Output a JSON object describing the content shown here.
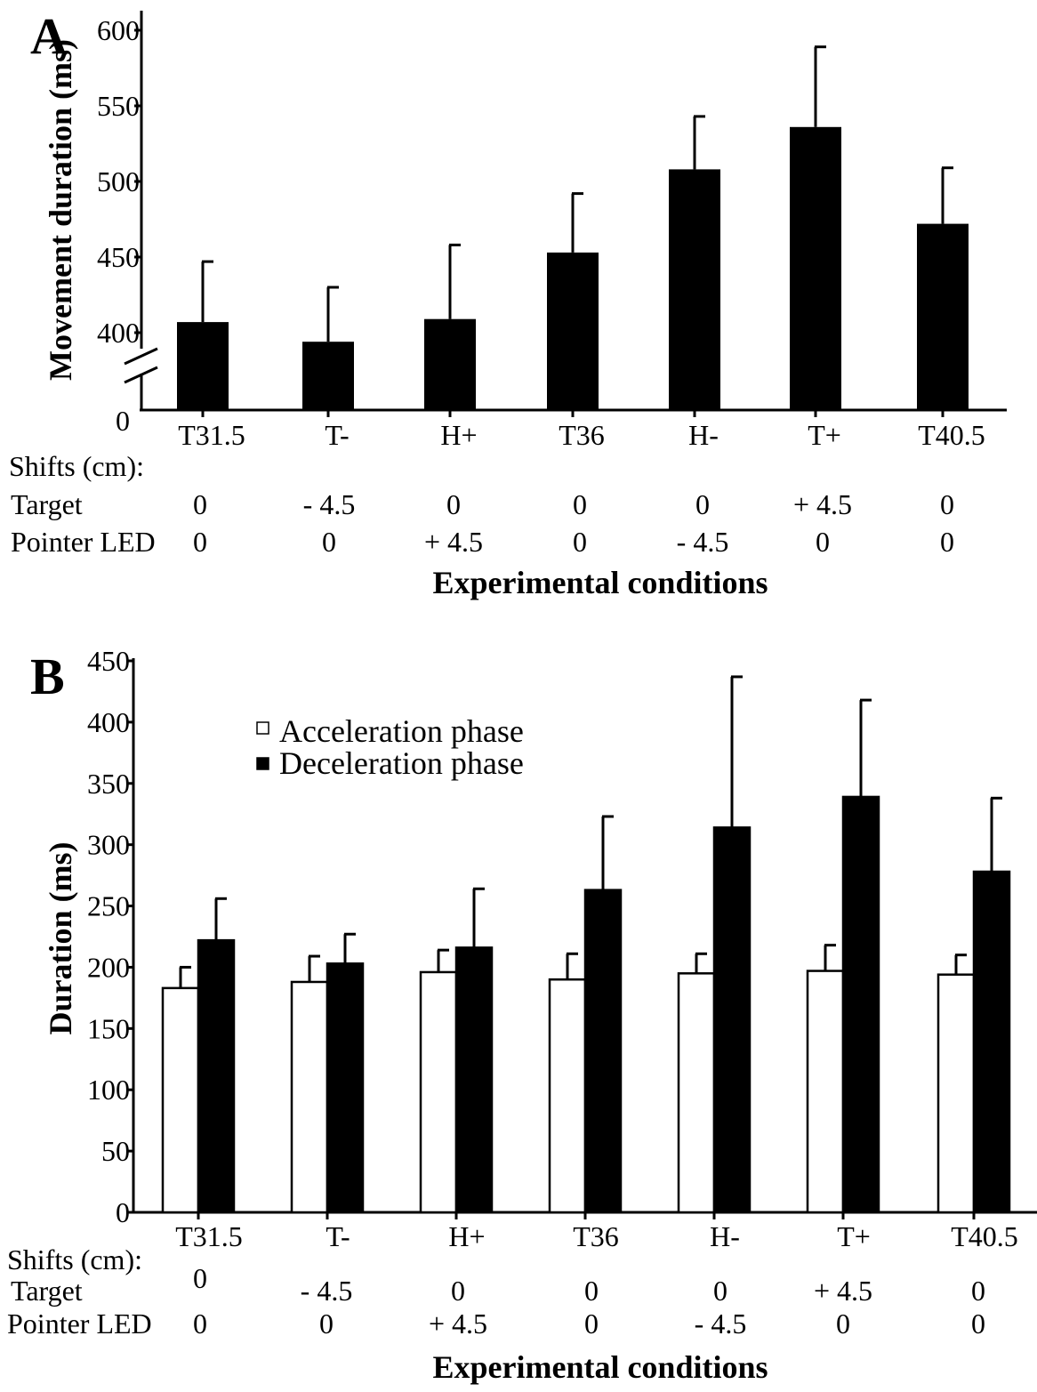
{
  "chart_data": [
    {
      "type": "bar",
      "panel": "A",
      "ylabel": "Movement duration (ms)",
      "xlabel": "Experimental conditions",
      "categories": [
        "T31.5",
        "T-",
        "H+",
        "T36",
        "H-",
        "T+",
        "T40.5"
      ],
      "yticks": [
        600,
        550,
        500,
        450,
        400
      ],
      "ylim": [
        380,
        605
      ],
      "axis_break": true,
      "zero_label": "0",
      "series": [
        {
          "values": [
            407,
            394,
            409,
            453,
            508,
            536,
            472
          ],
          "errors": [
            40,
            36,
            49,
            39,
            35,
            53,
            37
          ],
          "color": "#000000"
        }
      ],
      "shifts": {
        "header": "Shifts (cm):",
        "rows": [
          {
            "label": "Target",
            "values": [
              "0",
              "- 4.5",
              "0",
              "0",
              "0",
              "+ 4.5",
              "0"
            ]
          },
          {
            "label": "Pointer LED",
            "values": [
              "0",
              "0",
              "+ 4.5",
              "0",
              "- 4.5",
              "0",
              "0"
            ]
          }
        ]
      }
    },
    {
      "type": "bar",
      "panel": "B",
      "ylabel": "Duration (ms)",
      "xlabel": "Experimental conditions",
      "categories": [
        "T31.5",
        "T-",
        "H+",
        "T36",
        "H-",
        "T+",
        "T40.5"
      ],
      "yticks": [
        450,
        400,
        350,
        300,
        250,
        200,
        150,
        100,
        50,
        0
      ],
      "ylim": [
        0,
        450
      ],
      "legend_position": "top-left",
      "series": [
        {
          "name": "Acceleration phase",
          "values": [
            183,
            188,
            196,
            190,
            195,
            197,
            194
          ],
          "errors": [
            17,
            21,
            18,
            21,
            16,
            21,
            16
          ],
          "color": "#ffffff"
        },
        {
          "name": "Deceleration phase",
          "values": [
            222,
            203,
            216,
            263,
            314,
            339,
            278
          ],
          "errors": [
            34,
            24,
            48,
            60,
            123,
            79,
            60
          ],
          "color": "#000000"
        }
      ],
      "shifts": {
        "header": "Shifts (cm):",
        "rows": [
          {
            "label": "Target",
            "values": [
              "0",
              "- 4.5",
              "0",
              "0",
              "0",
              "+ 4.5",
              "0"
            ]
          },
          {
            "label": "Pointer LED",
            "values": [
              "0",
              "0",
              "+ 4.5",
              "0",
              "- 4.5",
              "0",
              "0"
            ]
          }
        ]
      }
    }
  ]
}
